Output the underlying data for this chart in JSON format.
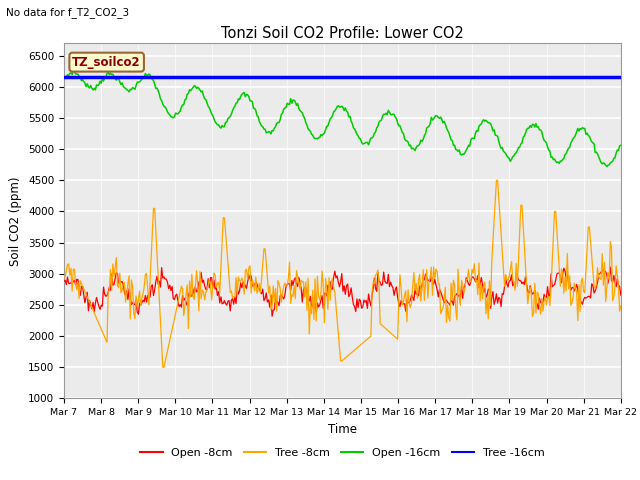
{
  "title": "Tonzi Soil CO2 Profile: Lower CO2",
  "subtitle": "No data for f_T2_CO2_3",
  "ylabel": "Soil CO2 (ppm)",
  "xlabel": "Time",
  "ylim": [
    1000,
    6700
  ],
  "yticks": [
    1000,
    1500,
    2000,
    2500,
    3000,
    3500,
    4000,
    4500,
    5000,
    5500,
    6000,
    6500
  ],
  "xtick_labels": [
    "Mar 7",
    "Mar 8",
    "Mar 9",
    "Mar 10",
    "Mar 11",
    "Mar 12",
    "Mar 13",
    "Mar 14",
    "Mar 15",
    "Mar 16",
    "Mar 17",
    "Mar 18",
    "Mar 19",
    "Mar 20",
    "Mar 21",
    "Mar 22"
  ],
  "legend_labels": [
    "Open -8cm",
    "Tree -8cm",
    "Open -16cm",
    "Tree -16cm"
  ],
  "box_label": "TZ_soilco2",
  "box_text_color": "#8B0000",
  "box_bg_color": "#FFFACD",
  "box_border_color": "#996633",
  "bg_color": "#EBEBEB",
  "grid_color": "white",
  "blue_line_value": 6155,
  "n_points": 480
}
